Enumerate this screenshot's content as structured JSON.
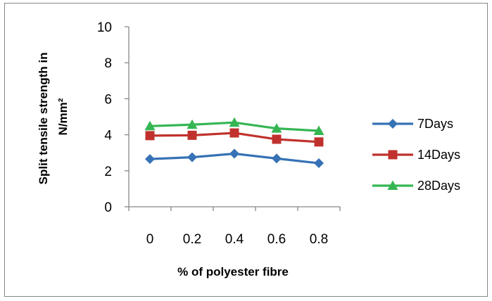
{
  "chart_data": {
    "type": "line",
    "x": [
      0,
      0.2,
      0.4,
      0.6,
      0.8
    ],
    "x_tick_labels": [
      "0",
      "0.2",
      "0.4",
      "0.6",
      "0.8"
    ],
    "xlabel": "% of polyester fibre",
    "ylabel": [
      "Split tensile strength in",
      "N/mm²"
    ],
    "ylim": [
      0,
      10
    ],
    "y_ticks": [
      0,
      2,
      4,
      6,
      8,
      10
    ],
    "grid": false,
    "legend": "right",
    "series": [
      {
        "name": "7Days",
        "values": [
          2.65,
          2.75,
          2.95,
          2.68,
          2.42
        ],
        "color": "#3672b5",
        "marker": "diamond"
      },
      {
        "name": "14Days",
        "values": [
          3.95,
          3.97,
          4.1,
          3.75,
          3.6
        ],
        "color": "#c0312d",
        "marker": "square"
      },
      {
        "name": "28Days",
        "values": [
          4.48,
          4.56,
          4.68,
          4.35,
          4.22
        ],
        "color": "#35b653",
        "marker": "triangle"
      }
    ]
  }
}
